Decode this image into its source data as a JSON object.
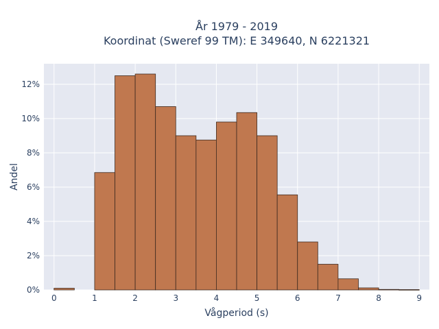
{
  "title_line1": "År 1979 - 2019",
  "title_line2": "Koordinat (Sweref 99 TM): E 349640, N 6221321",
  "colors": {
    "bar_fill": "#c0784f",
    "bar_stroke": "#3d2a20",
    "plot_bg": "#e5e8f1",
    "grid": "#ffffff"
  },
  "chart_data": {
    "type": "bar",
    "xlabel": "Vågperiod (s)",
    "ylabel": "Andel",
    "x_tick_labels": [
      "0",
      "1",
      "2",
      "3",
      "4",
      "5",
      "6",
      "7",
      "8",
      "9"
    ],
    "y_tick_labels": [
      "0%",
      "2%",
      "4%",
      "6%",
      "8%",
      "10%",
      "12%"
    ],
    "xlim": [
      -0.25,
      9.25
    ],
    "ylim": [
      0,
      13.2
    ],
    "bin_width": 0.5,
    "bins": [
      {
        "start": 0.0,
        "value": 0.1
      },
      {
        "start": 0.5,
        "value": 0.0
      },
      {
        "start": 1.0,
        "value": 6.85
      },
      {
        "start": 1.5,
        "value": 12.5
      },
      {
        "start": 2.0,
        "value": 12.6
      },
      {
        "start": 2.5,
        "value": 10.7
      },
      {
        "start": 3.0,
        "value": 9.0
      },
      {
        "start": 3.5,
        "value": 8.75
      },
      {
        "start": 4.0,
        "value": 9.8
      },
      {
        "start": 4.5,
        "value": 10.35
      },
      {
        "start": 5.0,
        "value": 9.0
      },
      {
        "start": 5.5,
        "value": 5.55
      },
      {
        "start": 6.0,
        "value": 2.8
      },
      {
        "start": 6.5,
        "value": 1.5
      },
      {
        "start": 7.0,
        "value": 0.65
      },
      {
        "start": 7.5,
        "value": 0.12
      },
      {
        "start": 8.0,
        "value": 0.03
      },
      {
        "start": 8.5,
        "value": 0.02
      }
    ]
  }
}
